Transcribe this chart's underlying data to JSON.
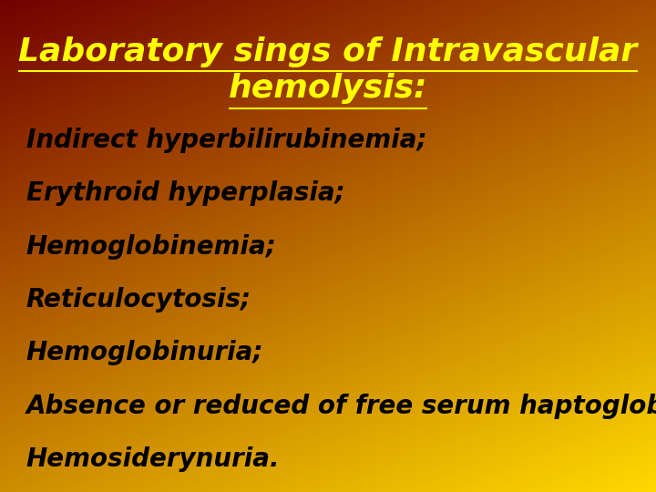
{
  "title_line1": "Laboratory sings of Intravascular",
  "title_line2": "hemolysis:",
  "title_color": "#FFFF00",
  "title_fontsize": 26,
  "bullet_items": [
    "Indirect hyperbilirubinemia;",
    "Erythroid hyperplasia;",
    "Hemoglobinemia;",
    "Reticulocytosis;",
    "Hemoglobinuria;",
    "Absence or reduced of free serum haptoglobin;",
    "Hemosiderynuria."
  ],
  "bullet_color": "#000000",
  "bullet_fontsize": 20,
  "fig_width": 7.2,
  "fig_height": 5.4,
  "dpi": 100
}
